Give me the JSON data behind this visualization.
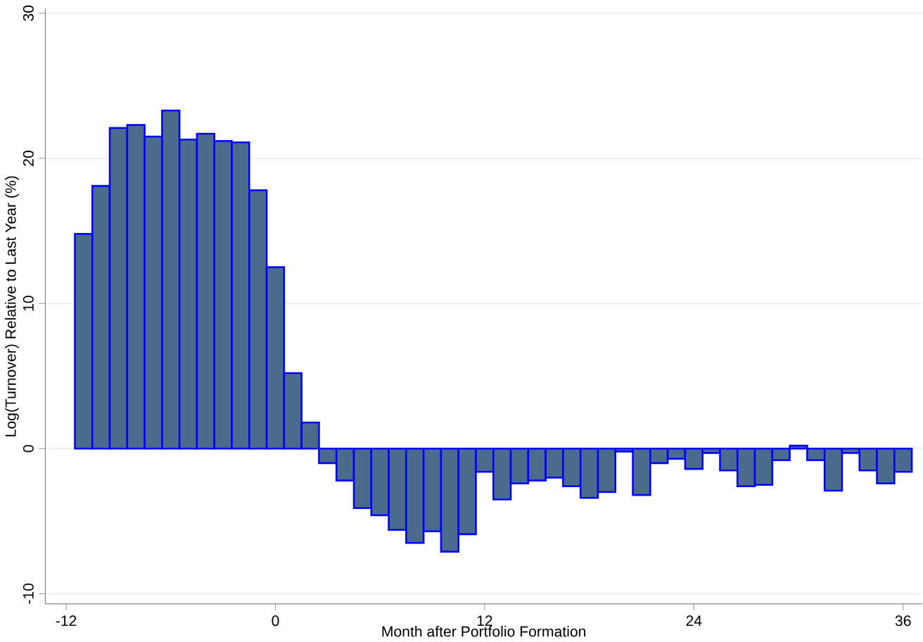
{
  "chart_data": {
    "type": "bar",
    "xlabel": "Month after Portfolio Formation",
    "ylabel": "Log(Turnover) Relative to Last Year (%)",
    "x": [
      -11,
      -10,
      -9,
      -8,
      -7,
      -6,
      -5,
      -4,
      -3,
      -2,
      -1,
      0,
      1,
      2,
      3,
      4,
      5,
      6,
      7,
      8,
      9,
      10,
      11,
      12,
      13,
      14,
      15,
      16,
      17,
      18,
      19,
      20,
      21,
      22,
      23,
      24,
      25,
      26,
      27,
      28,
      29,
      30,
      31,
      32,
      33,
      34,
      35,
      36
    ],
    "series": [
      {
        "color": "#4a6b8c",
        "values": [
          14.8,
          18.1,
          22.1,
          22.3,
          21.5,
          23.3,
          21.3,
          21.7,
          21.2,
          21.1,
          17.8,
          12.5,
          5.2,
          1.8,
          -1.0,
          -2.2,
          -4.1,
          -4.6,
          -5.6,
          -6.5,
          -5.7,
          -7.1,
          -5.9,
          -1.6,
          -3.5,
          -2.4,
          -2.2,
          -2.0,
          -2.6,
          -3.4,
          -3.0,
          -0.2,
          -3.2,
          -1.0,
          -0.7,
          -1.4,
          -0.3,
          -1.5,
          -2.6,
          -2.5,
          -0.8,
          0.2,
          -0.8,
          -2.9,
          -0.3,
          -1.5,
          -2.4,
          -1.6
        ]
      }
    ],
    "xlim": [
      -13.2,
      37.1
    ],
    "ylim": [
      -10.7,
      30.3
    ],
    "xticks": [
      -12,
      0,
      12,
      24,
      36
    ],
    "yticks": [
      -10,
      0,
      10,
      20,
      30
    ],
    "grid": "y"
  }
}
